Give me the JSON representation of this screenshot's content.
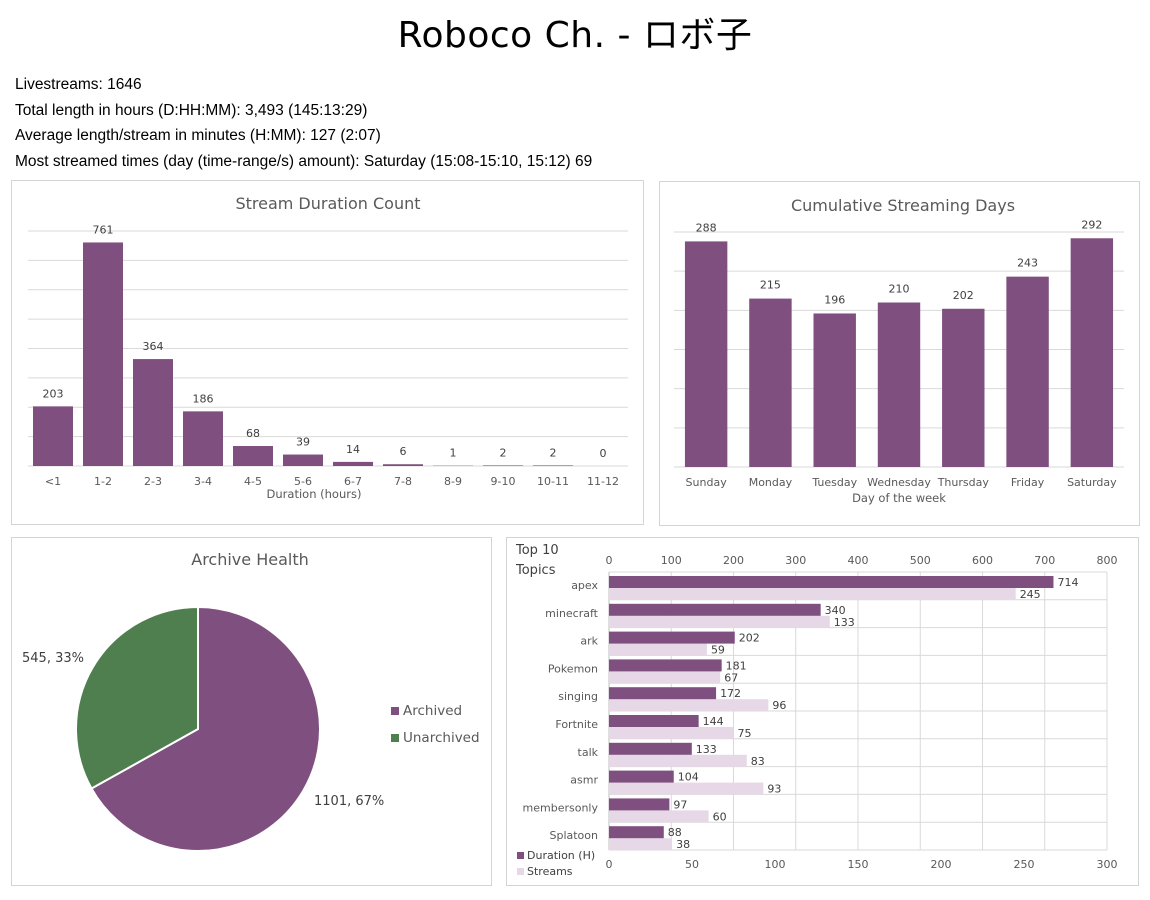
{
  "page": {
    "title": "Roboco Ch. - ロボ子",
    "stats": [
      "Livestreams: 1646",
      "Total length in hours (D:HH:MM): 3,493 (145:13:29)",
      "Average length/stream in minutes (H:MM): 127 (2:07)",
      "Most streamed times (day (time-range/s) amount): Saturday (15:08-15:10, 15:12) 69"
    ]
  },
  "colors": {
    "primary": "#7f4f7f",
    "light": "#e6d8e6",
    "green": "#4f7f4f",
    "grid": "#d9d9d9",
    "text": "#595959"
  },
  "chart_data": [
    {
      "id": "duration",
      "type": "bar",
      "title": "Stream Duration Count",
      "xlabel": "Duration (hours)",
      "ylabel": "",
      "categories": [
        "<1",
        "1-2",
        "2-3",
        "3-4",
        "4-5",
        "5-6",
        "6-7",
        "7-8",
        "8-9",
        "9-10",
        "10-11",
        "11-12"
      ],
      "values": [
        203,
        761,
        364,
        186,
        68,
        39,
        14,
        6,
        1,
        2,
        2,
        0
      ],
      "ylim": [
        0,
        800
      ],
      "grid": true,
      "legend": "none"
    },
    {
      "id": "days",
      "type": "bar",
      "title": "Cumulative Streaming Days",
      "xlabel": "Day of the week",
      "ylabel": "",
      "categories": [
        "Sunday",
        "Monday",
        "Tuesday",
        "Wednesday",
        "Thursday",
        "Friday",
        "Saturday"
      ],
      "values": [
        288,
        215,
        196,
        210,
        202,
        243,
        292
      ],
      "ylim": [
        0,
        300
      ],
      "grid": true,
      "legend": "none"
    },
    {
      "id": "archive",
      "type": "pie",
      "title": "Archive Health",
      "labels": [
        "Archived",
        "Unarchived"
      ],
      "values": [
        1101,
        545
      ],
      "percents": [
        67,
        33
      ],
      "data_labels": [
        "1101, 67%",
        "545, 33%"
      ],
      "legend": "right"
    },
    {
      "id": "topics",
      "type": "bar",
      "orientation": "horizontal",
      "title": "Top 10 Topics",
      "categories": [
        "apex",
        "minecraft",
        "ark",
        "Pokemon",
        "singing",
        "Fortnite",
        "talk",
        "asmr",
        "membersonly",
        "Splatoon"
      ],
      "series": [
        {
          "name": "Duration (H)",
          "axis": "top",
          "values": [
            714,
            340,
            202,
            181,
            172,
            144,
            133,
            104,
            97,
            88
          ]
        },
        {
          "name": "Streams",
          "axis": "bottom",
          "values": [
            245,
            133,
            59,
            67,
            96,
            75,
            83,
            93,
            60,
            38
          ]
        }
      ],
      "top_axis": {
        "range": [
          0,
          800
        ],
        "ticks": [
          "0",
          "100",
          "200",
          "300",
          "400",
          "500",
          "600",
          "700",
          "800"
        ]
      },
      "bottom_axis": {
        "range": [
          0,
          300
        ],
        "ticks": [
          "0",
          "50",
          "100",
          "150",
          "200",
          "250",
          "300"
        ]
      },
      "grid": true,
      "legend": "bottom-left"
    }
  ]
}
